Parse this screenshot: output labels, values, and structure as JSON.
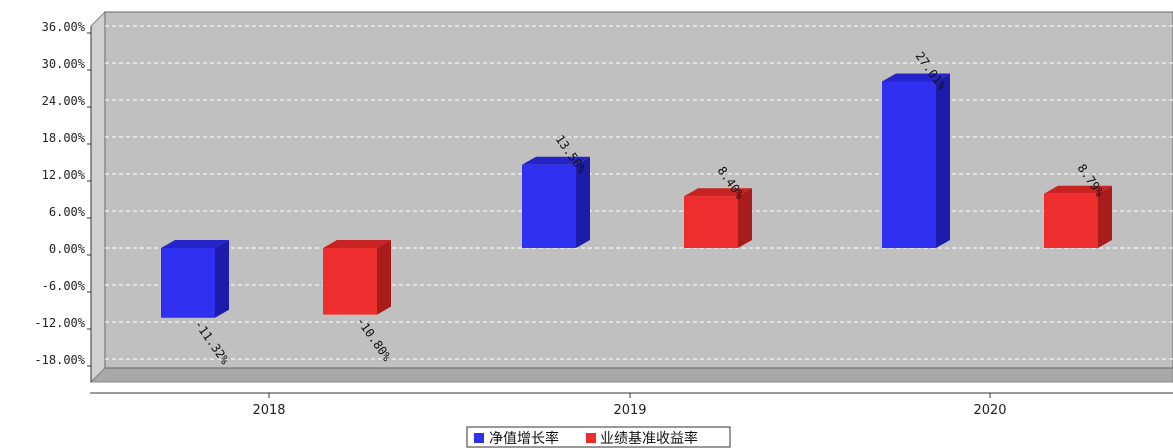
{
  "chart_data": {
    "type": "bar",
    "categories": [
      "2018",
      "2019",
      "2020"
    ],
    "series": [
      {
        "name": "净值增长率",
        "values": [
          -11.32,
          13.5,
          27.01
        ],
        "labels": [
          "-11.32%",
          "13.50%",
          "27.01%"
        ],
        "color": "#3030f0",
        "side": "#1c1ca8",
        "top": "#2424c8"
      },
      {
        "name": "业绩基准收益率",
        "values": [
          -10.8,
          8.4,
          8.79
        ],
        "labels": [
          "-10.80%",
          "8.40%",
          "8.79%"
        ],
        "color": "#ee2e2e",
        "side": "#a81c1c",
        "top": "#c82222"
      }
    ],
    "yticks": [
      "36.00%",
      "30.00%",
      "24.00%",
      "18.00%",
      "12.00%",
      "6.00%",
      "0.00%",
      "-6.00%",
      "-12.00%",
      "-18.00%"
    ],
    "ylim": [
      -22,
      38
    ],
    "grid": true,
    "legend_position": "bottom-center",
    "colors": {
      "plot_bg": "#c0c0c0",
      "wall": "#d0d0d0",
      "floor": "#a8a8a8",
      "grid": "#ffffff"
    }
  }
}
